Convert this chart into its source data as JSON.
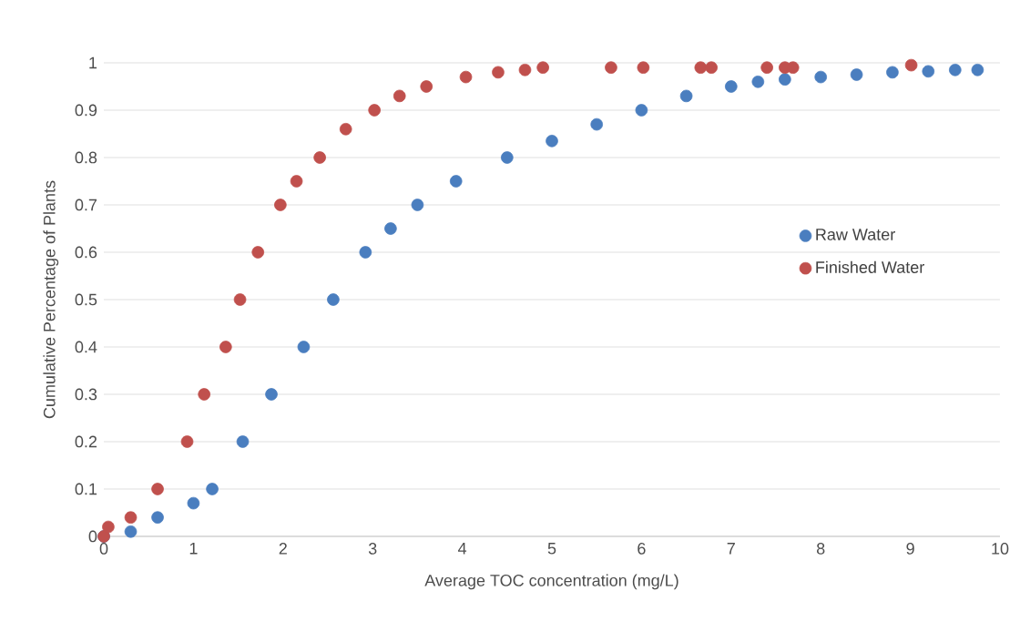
{
  "chart_data": {
    "type": "scatter",
    "xlabel": "Average TOC concentration (mg/L)",
    "ylabel": "Cumulative Percentage of Plants",
    "xlim": [
      0,
      10
    ],
    "xticks": [
      0,
      1,
      2,
      3,
      4,
      5,
      6,
      7,
      8,
      9,
      10
    ],
    "ylim": [
      0,
      1
    ],
    "yticks": [
      0,
      0.1,
      0.2,
      0.3,
      0.4,
      0.5,
      0.6,
      0.7,
      0.8,
      0.9,
      1
    ],
    "grid": "y",
    "legend": "right",
    "marker": "circle",
    "series": [
      {
        "name": "Raw Water",
        "color": "#4a7ebf",
        "x": [
          0,
          0.3,
          0.6,
          1.0,
          1.21,
          1.55,
          1.87,
          2.23,
          2.56,
          2.92,
          3.2,
          3.5,
          3.93,
          4.5,
          5.0,
          5.5,
          6.0,
          6.5,
          7.0,
          7.3,
          7.6,
          8.0,
          8.4,
          8.8,
          9.2,
          9.5,
          9.75
        ],
        "values": [
          0,
          0.01,
          0.04,
          0.07,
          0.1,
          0.2,
          0.3,
          0.4,
          0.5,
          0.6,
          0.65,
          0.7,
          0.75,
          0.8,
          0.835,
          0.87,
          0.9,
          0.93,
          0.95,
          0.96,
          0.965,
          0.97,
          0.975,
          0.98,
          0.982,
          0.985,
          0.985
        ]
      },
      {
        "name": "Finished Water",
        "color": "#c0504d",
        "x": [
          0,
          0.05,
          0.3,
          0.6,
          0.93,
          1.12,
          1.36,
          1.52,
          1.72,
          1.97,
          2.15,
          2.41,
          2.7,
          3.02,
          3.3,
          3.6,
          4.04,
          4.4,
          4.7,
          4.9,
          5.66,
          6.02,
          6.66,
          6.78,
          7.4,
          7.6,
          7.69,
          9.01
        ],
        "values": [
          0,
          0.02,
          0.04,
          0.1,
          0.2,
          0.3,
          0.4,
          0.5,
          0.6,
          0.7,
          0.75,
          0.8,
          0.86,
          0.9,
          0.93,
          0.95,
          0.97,
          0.98,
          0.985,
          0.99,
          0.99,
          0.99,
          0.99,
          0.99,
          0.99,
          0.99,
          0.99,
          0.995
        ]
      }
    ]
  }
}
